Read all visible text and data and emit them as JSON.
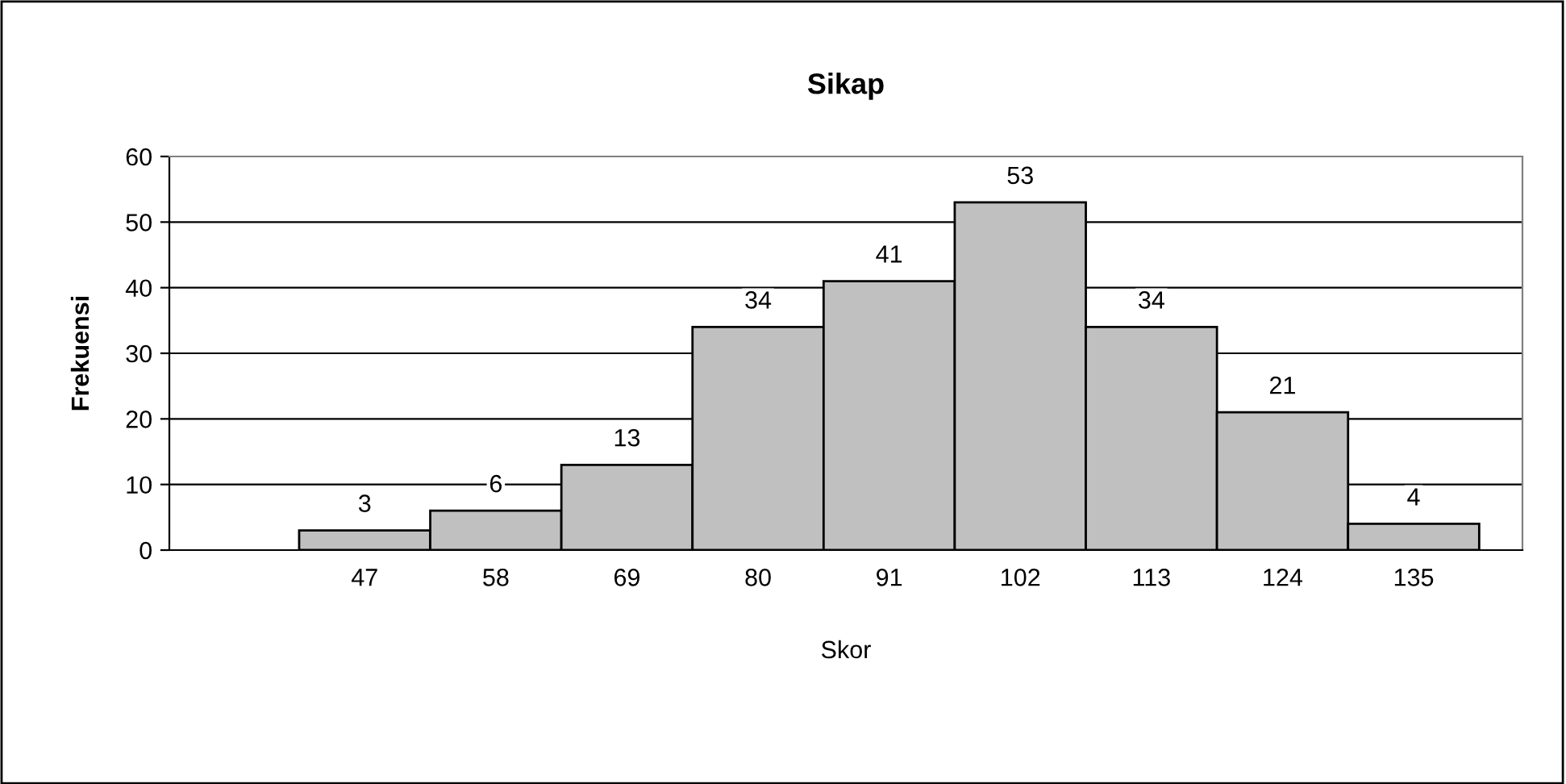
{
  "chart_data": {
    "type": "bar",
    "title": "Sikap",
    "xlabel": "Skor",
    "ylabel": "Frekuensi",
    "categories": [
      "47",
      "58",
      "69",
      "80",
      "91",
      "102",
      "113",
      "124",
      "135"
    ],
    "values": [
      3,
      6,
      13,
      34,
      41,
      53,
      34,
      21,
      4
    ],
    "color": "#c0c0c0",
    "ylim": [
      0,
      60
    ],
    "yticks": [
      0,
      10,
      20,
      30,
      40,
      50,
      60
    ],
    "grid": "y",
    "data_labels": true,
    "legend": false
  }
}
